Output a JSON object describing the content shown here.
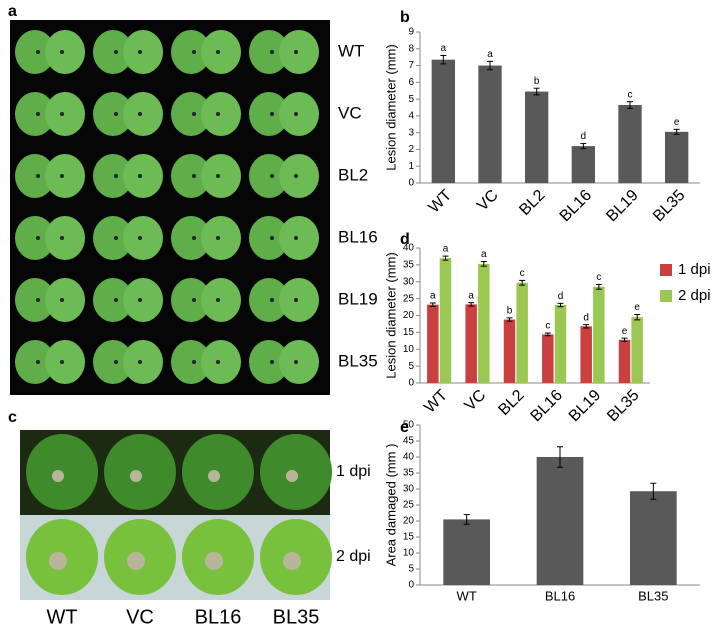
{
  "photo_a": {
    "label": "a",
    "rows": [
      "WT",
      "VC",
      "BL2",
      "BL16",
      "BL19",
      "BL35"
    ]
  },
  "photo_c": {
    "label": "c",
    "rows": [
      "1 dpi",
      "2 dpi"
    ],
    "columns": [
      "WT",
      "VC",
      "BL16",
      "BL35"
    ]
  },
  "chart_data": [
    {
      "type": "bar",
      "label": "b",
      "y_label": "Lesion diameter (mm)",
      "categories": [
        "WT",
        "VC",
        "BL2",
        "BL16",
        "BL19",
        "BL35"
      ],
      "values": [
        7.35,
        7.0,
        5.45,
        2.2,
        4.65,
        3.05
      ],
      "errors": [
        0.25,
        0.25,
        0.2,
        0.15,
        0.2,
        0.15
      ],
      "letters": [
        "a",
        "a",
        "b",
        "d",
        "c",
        "e"
      ],
      "color": "#595959",
      "ylim": [
        0,
        9
      ],
      "yticks": [
        0,
        1,
        2,
        3,
        4,
        5,
        6,
        7,
        8,
        9
      ]
    },
    {
      "type": "grouped_bar",
      "label": "d",
      "y_label": "Lesion diameter (mm)",
      "categories": [
        "WT",
        "VC",
        "BL2",
        "BL16",
        "BL19",
        "BL35"
      ],
      "series": [
        {
          "name": "1 dpi",
          "color": "#c9403f",
          "values": [
            23.2,
            23.3,
            18.8,
            14.4,
            16.8,
            12.8
          ],
          "errors": [
            0.5,
            0.5,
            0.5,
            0.4,
            0.5,
            0.5
          ],
          "letters": [
            "a",
            "a",
            "b",
            "c",
            "d",
            "e"
          ]
        },
        {
          "name": "2 dpi",
          "color": "#9bc853",
          "values": [
            37.0,
            35.3,
            29.7,
            23.1,
            28.5,
            19.5
          ],
          "errors": [
            0.6,
            0.7,
            0.7,
            0.5,
            0.7,
            0.8
          ],
          "letters": [
            "a",
            "a",
            "c",
            "d",
            "c",
            "e"
          ]
        }
      ],
      "legend": "right",
      "ylim": [
        0,
        40
      ],
      "yticks": [
        0,
        5,
        10,
        15,
        20,
        25,
        30,
        35,
        40
      ]
    },
    {
      "type": "bar",
      "label": "e",
      "y_label": "Area damaged (mm )",
      "categories": [
        "WT",
        "BL16",
        "BL35"
      ],
      "values": [
        20.5,
        40.0,
        29.3
      ],
      "errors": [
        1.5,
        3.2,
        2.5
      ],
      "color": "#595959",
      "ylim": [
        0,
        50
      ],
      "yticks": [
        0,
        5,
        10,
        15,
        20,
        25,
        30,
        35,
        40,
        45,
        50
      ]
    }
  ]
}
